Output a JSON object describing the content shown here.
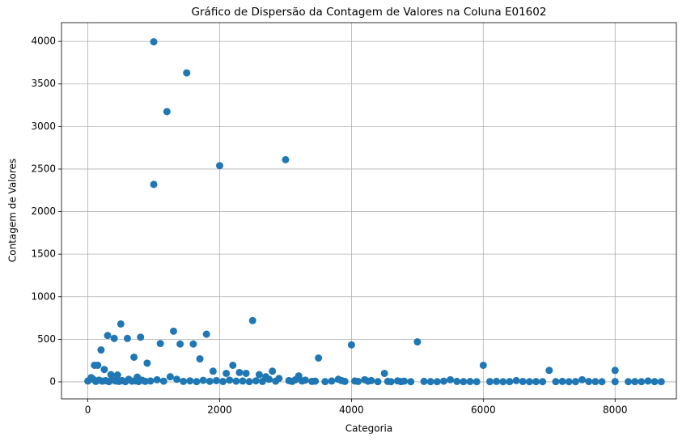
{
  "chart_data": {
    "type": "scatter",
    "title": "Gráfico de Dispersão da Contagem de Valores na Coluna E01602",
    "x_label": "Categoria",
    "y_label": "Contagem de Valores",
    "color": "#1f77b4",
    "grid": true,
    "xlim": [
      -400,
      8930
    ],
    "ylim": [
      -200,
      4220
    ],
    "xticks": [
      0,
      2000,
      4000,
      6000,
      8000
    ],
    "yticks": [
      0,
      500,
      1000,
      1500,
      2000,
      2500,
      3000,
      3500,
      4000
    ],
    "x": [
      1000,
      1500,
      1200,
      3000,
      2000,
      1000,
      2500,
      500,
      1300,
      1800,
      300,
      800,
      400,
      600,
      5000,
      1100,
      1400,
      1600,
      4000,
      200,
      700,
      3500,
      1700,
      900,
      100,
      150,
      2200,
      6000,
      250,
      7000,
      8000,
      1900,
      2800,
      2300,
      2400,
      2100,
      4500,
      2600,
      350,
      450,
      3200,
      2700,
      750,
      0,
      50,
      80,
      120,
      170,
      220,
      270,
      320,
      370,
      420,
      470,
      520,
      570,
      620,
      670,
      720,
      770,
      820,
      870,
      950,
      1050,
      1150,
      1250,
      1350,
      1450,
      1550,
      1650,
      1750,
      1850,
      1950,
      2050,
      2150,
      2250,
      2350,
      2450,
      2550,
      2650,
      2750,
      2850,
      2900,
      3050,
      3100,
      3150,
      3250,
      3300,
      3400,
      3450,
      3600,
      3700,
      3800,
      3850,
      3900,
      4050,
      4100,
      4200,
      4250,
      4300,
      4400,
      4550,
      4600,
      4700,
      4750,
      4800,
      4900,
      5100,
      5200,
      5300,
      5400,
      5500,
      5600,
      5700,
      5800,
      5900,
      6100,
      6200,
      6300,
      6400,
      6500,
      6600,
      6700,
      6800,
      6900,
      7100,
      7200,
      7300,
      7400,
      7500,
      7600,
      7700,
      7800,
      8000,
      8200,
      8300,
      8400,
      8500,
      8600,
      8700
    ],
    "values": [
      3995,
      3630,
      3175,
      2610,
      2540,
      2320,
      720,
      680,
      595,
      560,
      545,
      525,
      510,
      510,
      470,
      450,
      445,
      445,
      435,
      375,
      290,
      280,
      270,
      220,
      195,
      195,
      195,
      195,
      145,
      135,
      135,
      125,
      125,
      110,
      100,
      100,
      100,
      85,
      85,
      80,
      70,
      60,
      55,
      10,
      50,
      30,
      5,
      20,
      8,
      15,
      3,
      25,
      10,
      5,
      15,
      2,
      30,
      8,
      12,
      4,
      20,
      6,
      10,
      25,
      8,
      60,
      30,
      5,
      12,
      3,
      18,
      6,
      15,
      4,
      20,
      8,
      10,
      3,
      12,
      5,
      30,
      8,
      40,
      15,
      5,
      25,
      10,
      20,
      5,
      8,
      3,
      10,
      30,
      15,
      5,
      10,
      5,
      25,
      8,
      15,
      3,
      5,
      2,
      12,
      3,
      8,
      2,
      5,
      3,
      2,
      8,
      25,
      5,
      3,
      4,
      2,
      3,
      5,
      2,
      3,
      15,
      4,
      2,
      3,
      2,
      3,
      5,
      2,
      3,
      25,
      4,
      3,
      2,
      3,
      2,
      3,
      2,
      10,
      3,
      2
    ]
  }
}
